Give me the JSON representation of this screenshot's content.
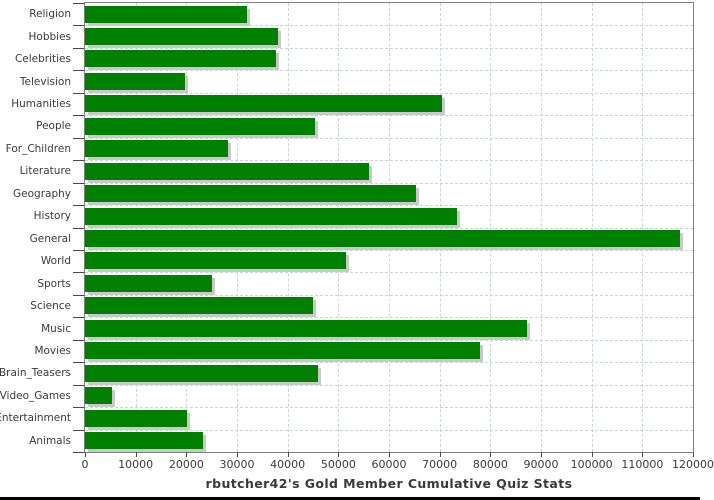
{
  "chart_data": {
    "type": "bar",
    "orientation": "horizontal",
    "title": "rbutcher42's Gold Member Cumulative Quiz Stats",
    "xlabel": "",
    "ylabel": "",
    "categories": [
      "Religion",
      "Hobbies",
      "Celebrities",
      "Television",
      "Humanities",
      "People",
      "For_Children",
      "Literature",
      "Geography",
      "History",
      "General",
      "World",
      "Sports",
      "Science",
      "Music",
      "Movies",
      "Brain_Teasers",
      "Video_Games",
      "Entertainment",
      "Animals"
    ],
    "values": [
      31900,
      38000,
      37700,
      19700,
      70400,
      45300,
      28300,
      56100,
      65300,
      73400,
      117500,
      51500,
      25000,
      45000,
      87300,
      78000,
      46000,
      5400,
      20100,
      23200
    ],
    "xlim": [
      0,
      120000
    ],
    "x_ticks": [
      0,
      10000,
      20000,
      30000,
      40000,
      50000,
      60000,
      70000,
      80000,
      90000,
      100000,
      110000,
      120000
    ],
    "grid": true,
    "legend": "none",
    "bar_color": "#008000",
    "bar_shadow_color": "#c9c9c9",
    "gridline_color": "#ccd3da",
    "axis_color": "#4a4a4a",
    "plot_border_color": "#7f7f7f",
    "text_color": "#3a3a3a"
  }
}
